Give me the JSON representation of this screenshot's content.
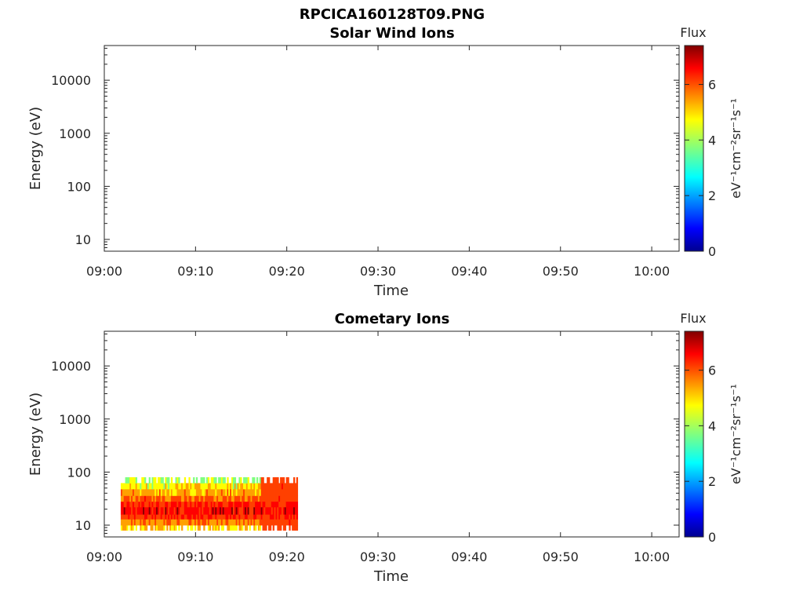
{
  "figure_title": "RPCICA160128T09.PNG",
  "colormap": [
    "#00008f",
    "#0000ff",
    "#00a0ff",
    "#00ffff",
    "#80ff80",
    "#ffff00",
    "#ffa000",
    "#ff4000",
    "#ff0000",
    "#800000"
  ],
  "chart_data": [
    {
      "type": "heatmap",
      "title": "Solar Wind Ions",
      "xlabel": "Time",
      "ylabel": "Energy (eV)",
      "x_ticks": [
        "09:00",
        "09:10",
        "09:20",
        "09:30",
        "09:40",
        "09:50",
        "10:00"
      ],
      "x_range_min": [
        0,
        63
      ],
      "y_scale": "log",
      "y_ticks": [
        10,
        100,
        1000,
        10000
      ],
      "y_tick_labels": [
        "10",
        "100",
        "1000",
        "10000"
      ],
      "y_range": [
        6,
        45000
      ],
      "colorbar": {
        "title": "Flux",
        "label": "eV⁻¹cm⁻²sr⁻¹s⁻¹",
        "ticks": [
          "0",
          "2",
          "4",
          "6"
        ],
        "range": [
          0,
          7.4
        ]
      },
      "data": []
    },
    {
      "type": "heatmap",
      "title": "Cometary Ions",
      "xlabel": "Time",
      "ylabel": "Energy (eV)",
      "x_ticks": [
        "09:00",
        "09:10",
        "09:20",
        "09:30",
        "09:40",
        "09:50",
        "10:00"
      ],
      "x_range_min": [
        0,
        63
      ],
      "y_scale": "log",
      "y_ticks": [
        10,
        100,
        1000,
        10000
      ],
      "y_tick_labels": [
        "10",
        "100",
        "1000",
        "10000"
      ],
      "y_range": [
        6,
        45000
      ],
      "colorbar": {
        "title": "Flux",
        "label": "eV⁻¹cm⁻²sr⁻¹s⁻¹",
        "ticks": [
          "0",
          "2",
          "4",
          "6"
        ],
        "range": [
          0,
          7.4
        ]
      },
      "data": {
        "description_free": true,
        "time_range_min": [
          1.8,
          21.2
        ],
        "energy_range_eV": [
          8,
          80
        ],
        "bands": [
          {
            "energy_eV": [
              8,
              10
            ],
            "flux": 4.5
          },
          {
            "energy_eV": [
              10,
              13
            ],
            "flux": 5.2
          },
          {
            "energy_eV": [
              13,
              16
            ],
            "flux": 6.0
          },
          {
            "energy_eV": [
              16,
              22
            ],
            "flux": 6.6
          },
          {
            "energy_eV": [
              22,
              28
            ],
            "flux": 6.3
          },
          {
            "energy_eV": [
              28,
              36
            ],
            "flux": 5.6
          },
          {
            "energy_eV": [
              36,
              48
            ],
            "flux": 4.9
          },
          {
            "energy_eV": [
              48,
              62
            ],
            "flux": 4.2
          },
          {
            "energy_eV": [
              62,
              80
            ],
            "flux": 3.6
          }
        ],
        "enhanced_interval_min": [
          17,
          21.2
        ],
        "enhanced_flux": 5.4
      }
    }
  ]
}
